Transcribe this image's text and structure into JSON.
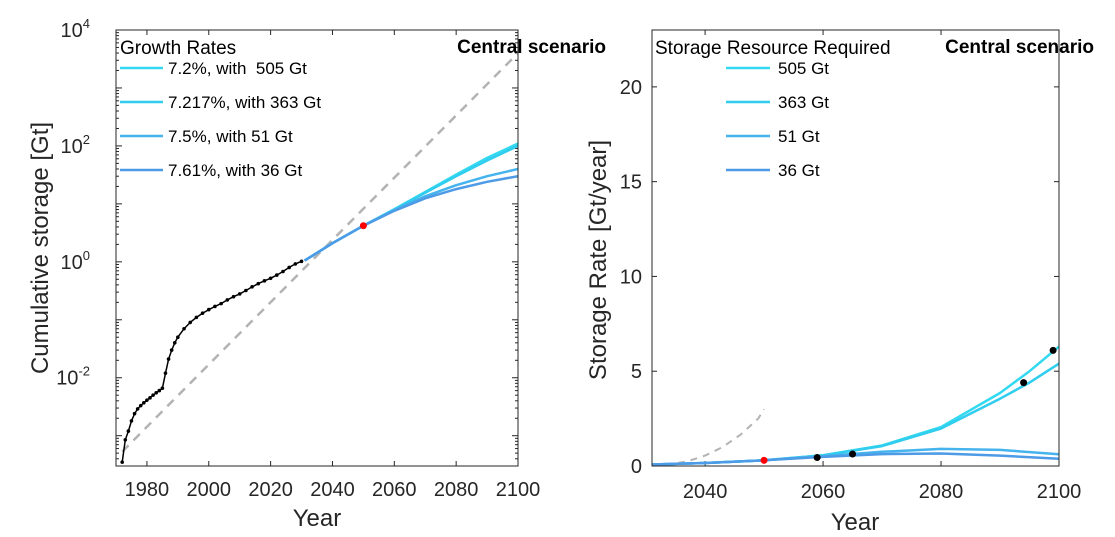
{
  "chart_data": [
    {
      "type": "line",
      "xlabel": "Year",
      "ylabel": "Cumulative storage [Gt]",
      "yscale": "log",
      "xlim": [
        1970,
        2100
      ],
      "ylim": [
        0.0003,
        10000
      ],
      "x_ticks": [
        1980,
        2000,
        2020,
        2040,
        2060,
        2080,
        2100
      ],
      "y_ticks": [
        {
          "base": "10",
          "exp": "-2",
          "value": 0.01
        },
        {
          "base": "10",
          "exp": "0",
          "value": 1
        },
        {
          "base": "10",
          "exp": "2",
          "value": 100
        },
        {
          "base": "10",
          "exp": "4",
          "value": 10000
        }
      ],
      "legend_title": "Growth Rates",
      "legend_position": "top-left",
      "annotation": "Central scenario",
      "historical": {
        "color": "#000000",
        "x": [
          1972,
          1973,
          1974,
          1975,
          1976,
          1977,
          1978,
          1979,
          1980,
          1981,
          1982,
          1983,
          1984,
          1985,
          1986,
          1987,
          1988,
          1989,
          1990,
          1992,
          1994,
          1996,
          1998,
          2000,
          2002,
          2004,
          2006,
          2008,
          2010,
          2012,
          2014,
          2016,
          2018,
          2020,
          2022,
          2024,
          2026,
          2028,
          2030
        ],
        "y": [
          0.00035,
          0.00085,
          0.0012,
          0.0018,
          0.0024,
          0.0029,
          0.0033,
          0.0037,
          0.0041,
          0.0045,
          0.005,
          0.0055,
          0.006,
          0.0066,
          0.012,
          0.021,
          0.03,
          0.04,
          0.05,
          0.07,
          0.09,
          0.11,
          0.13,
          0.15,
          0.17,
          0.19,
          0.22,
          0.25,
          0.28,
          0.32,
          0.37,
          0.42,
          0.47,
          0.52,
          0.59,
          0.68,
          0.8,
          0.92,
          1.02
        ]
      },
      "reference_line": {
        "style": "dashed",
        "color": "#b3b3b3",
        "x": [
          1972,
          2100
        ],
        "y": [
          0.00053,
          4000
        ]
      },
      "marker_2050": {
        "x": 2050,
        "y": 4.2,
        "color": "#ff0000"
      },
      "series": [
        {
          "name": "7.2%, with  505 Gt",
          "color": "#33d9f0",
          "x": [
            2031,
            2040,
            2050,
            2060,
            2070,
            2080,
            2090,
            2100
          ],
          "y": [
            1.05,
            2.1,
            4.2,
            8.1,
            16,
            32,
            62,
            110
          ]
        },
        {
          "name": "7.217%, with 363 Gt",
          "color": "#30cdee",
          "x": [
            2031,
            2040,
            2050,
            2060,
            2070,
            2080,
            2090,
            2100
          ],
          "y": [
            1.05,
            2.1,
            4.2,
            8.0,
            15.5,
            30,
            56,
            100
          ]
        },
        {
          "name": "7.5%, with 51 Gt",
          "color": "#45b3ee",
          "x": [
            2031,
            2040,
            2050,
            2060,
            2070,
            2080,
            2090,
            2100
          ],
          "y": [
            1.05,
            2.1,
            4.2,
            7.8,
            13.5,
            21,
            30,
            40
          ]
        },
        {
          "name": "7.61%, with 36 Gt",
          "color": "#4d9be6",
          "x": [
            2031,
            2040,
            2050,
            2060,
            2070,
            2080,
            2090,
            2100
          ],
          "y": [
            1.05,
            2.1,
            4.2,
            7.6,
            12.5,
            18,
            24,
            30
          ]
        }
      ]
    },
    {
      "type": "line",
      "xlabel": "Year",
      "ylabel": "Storage Rate [Gt/year]",
      "yscale": "linear",
      "xlim": [
        2031,
        2100
      ],
      "ylim": [
        0,
        23
      ],
      "x_ticks": [
        2040,
        2060,
        2080,
        2100
      ],
      "y_ticks": [
        0,
        5,
        10,
        15,
        20
      ],
      "legend_title": "Storage Resource Required",
      "legend_position": "top-left",
      "annotation": "Central scenario",
      "reference_line": {
        "style": "dashed",
        "color": "#b3b3b3",
        "x": [
          2031,
          2034,
          2037,
          2040,
          2043,
          2046,
          2049,
          2050
        ],
        "y": [
          0.0,
          0.08,
          0.25,
          0.55,
          1.0,
          1.65,
          2.5,
          3.0
        ]
      },
      "marker_2050": {
        "x": 2050,
        "y": 0.3,
        "color": "#ff0000"
      },
      "peak_markers": {
        "color": "#000000",
        "x": [
          2059,
          2065,
          2094,
          2099
        ],
        "y": [
          0.45,
          0.63,
          4.4,
          6.1
        ]
      },
      "series": [
        {
          "name": "505 Gt",
          "color": "#33d9f0",
          "x": [
            2031,
            2040,
            2050,
            2060,
            2070,
            2080,
            2090,
            2095,
            2100
          ],
          "y": [
            0.08,
            0.16,
            0.3,
            0.57,
            1.08,
            2.05,
            3.85,
            5.0,
            6.3
          ]
        },
        {
          "name": "363 Gt",
          "color": "#30cdee",
          "x": [
            2031,
            2040,
            2050,
            2060,
            2070,
            2080,
            2090,
            2095,
            2100
          ],
          "y": [
            0.08,
            0.16,
            0.3,
            0.56,
            1.05,
            1.98,
            3.55,
            4.4,
            5.4
          ]
        },
        {
          "name": "51 Gt",
          "color": "#45b3ee",
          "x": [
            2031,
            2040,
            2050,
            2060,
            2070,
            2080,
            2090,
            2100
          ],
          "y": [
            0.08,
            0.16,
            0.3,
            0.52,
            0.75,
            0.9,
            0.85,
            0.62
          ]
        },
        {
          "name": "36 Gt",
          "color": "#4d9be6",
          "x": [
            2031,
            2040,
            2050,
            2060,
            2070,
            2080,
            2090,
            2100
          ],
          "y": [
            0.08,
            0.16,
            0.3,
            0.48,
            0.63,
            0.66,
            0.55,
            0.38
          ]
        }
      ]
    }
  ]
}
